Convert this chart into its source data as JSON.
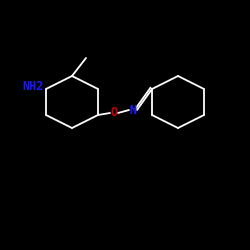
{
  "background_color": "#000000",
  "bond_color": "#ffffff",
  "NH2_color": "#1a1aff",
  "N_color": "#1a1aff",
  "O_color": "#cc0000",
  "NH2_label": "NH2",
  "N_label": "N",
  "O_label": "O",
  "figsize": [
    2.5,
    2.5
  ],
  "dpi": 100,
  "lw": 1.3,
  "font_size": 8.5
}
